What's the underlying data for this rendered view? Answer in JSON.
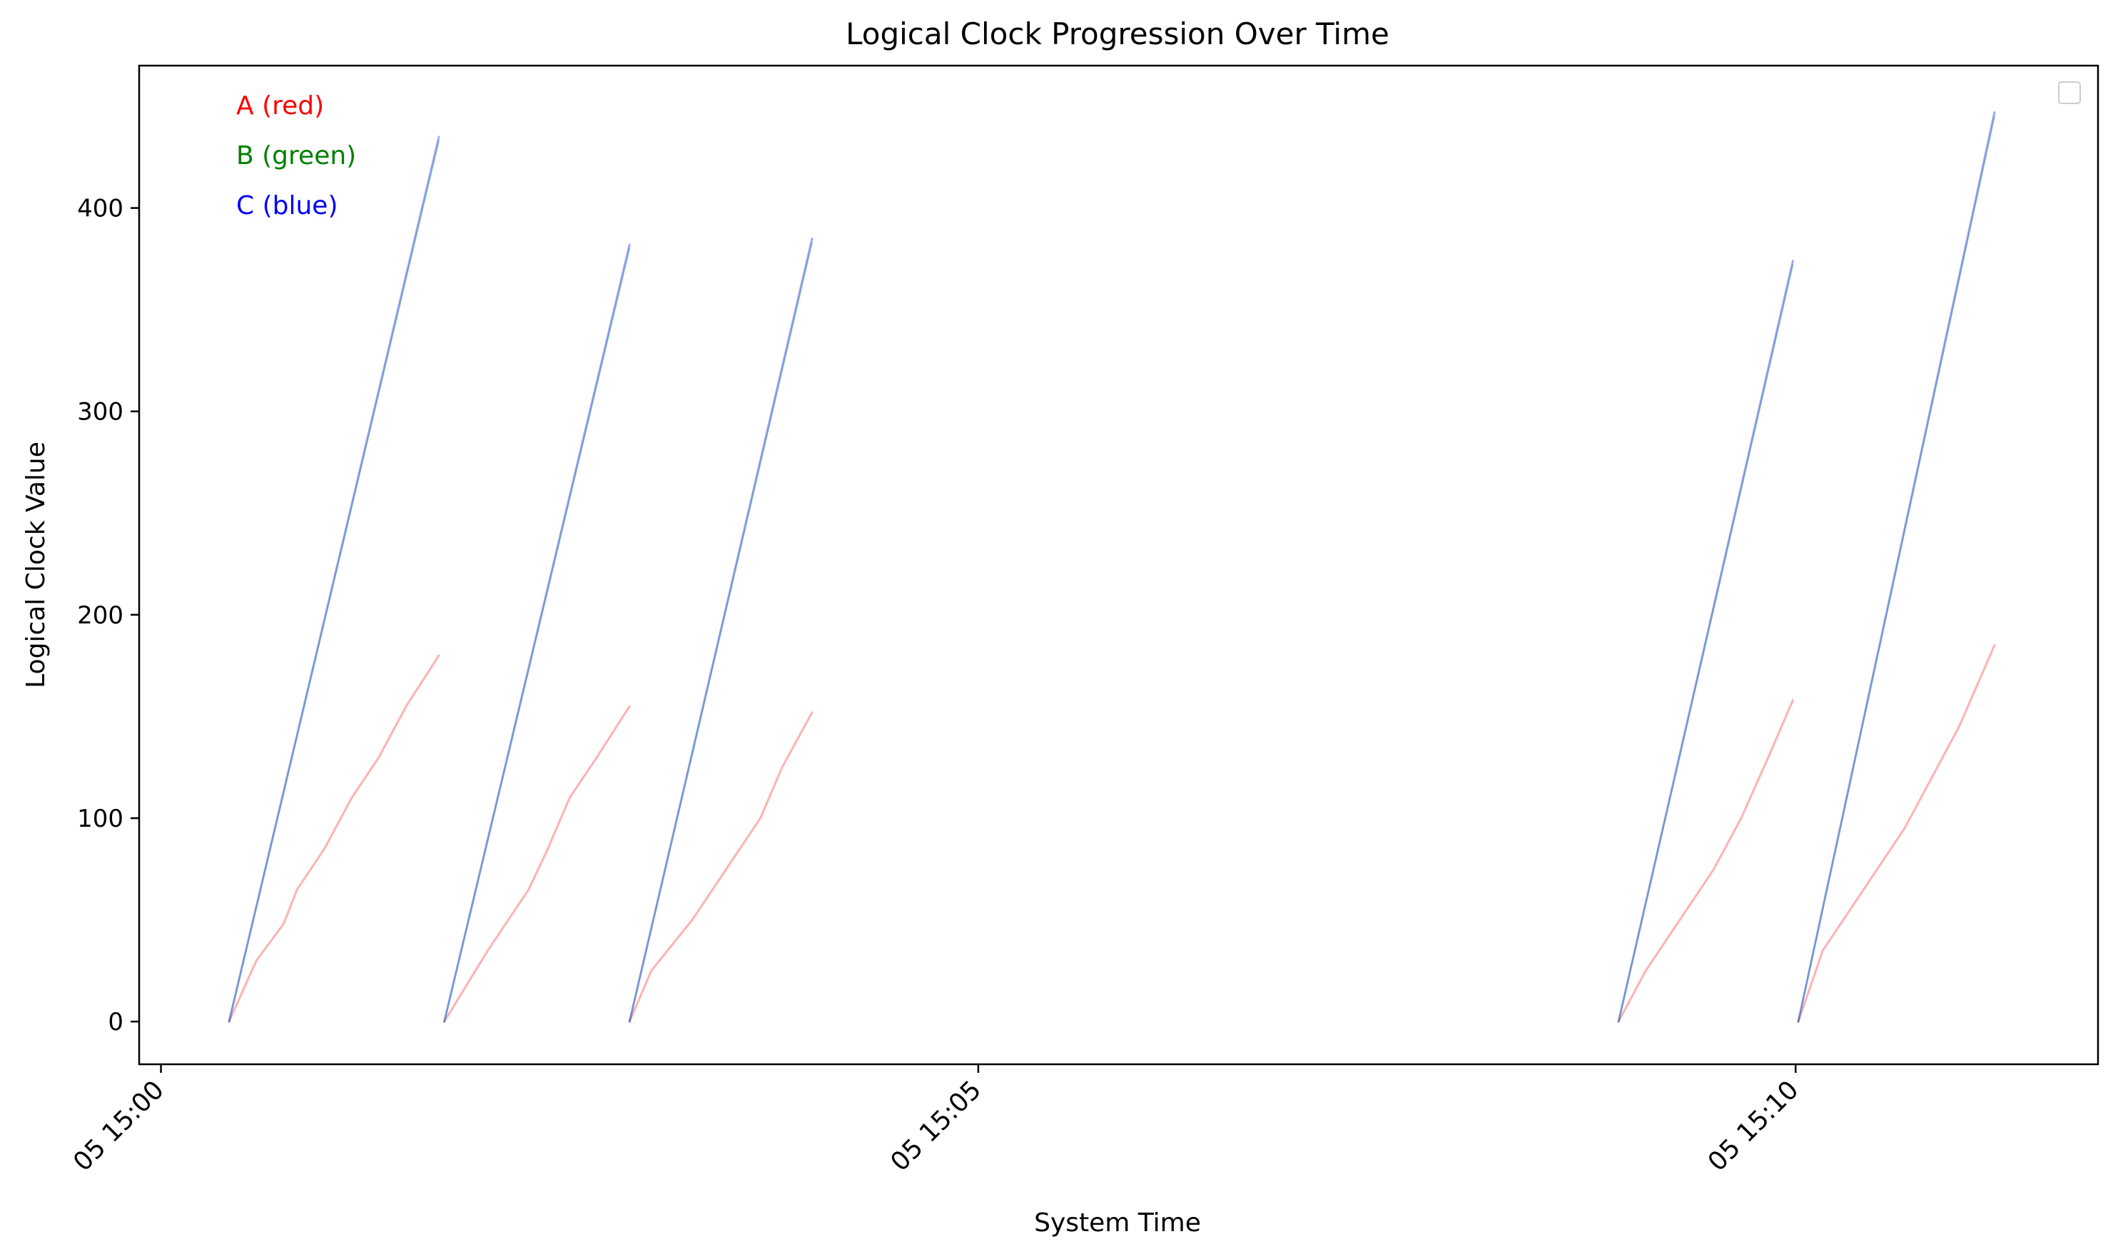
{
  "chart_data": {
    "type": "line",
    "title": "Logical Clock Progression Over Time",
    "xlabel": "System Time",
    "ylabel": "Logical Clock Value",
    "xlim": [
      "05 14:59:52",
      "05 15:11:51"
    ],
    "ylim": [
      -21,
      470
    ],
    "x_ticks": [
      {
        "t": "05 15:00:00",
        "label": "05 15:00"
      },
      {
        "t": "05 15:05:00",
        "label": "05 15:05"
      },
      {
        "t": "05 15:10:00",
        "label": "05 15:10"
      }
    ],
    "y_ticks": [
      0,
      100,
      200,
      300,
      400
    ],
    "grid": false,
    "legend_placement": "upper-right (empty)",
    "annotations": [
      {
        "text": "A (red)",
        "color": "#ff0000"
      },
      {
        "text": "B (green)",
        "color": "#008000"
      },
      {
        "text": "C (blue)",
        "color": "#0000ff"
      }
    ],
    "series": [
      {
        "color": "#ff0000",
        "runs": [
          [
            [
              "05 15:00:25",
              0
            ],
            [
              "05 15:00:35",
              30
            ],
            [
              "05 15:00:45",
              48
            ],
            [
              "05 15:00:50",
              65
            ],
            [
              "05 15:01:00",
              85
            ],
            [
              "05 15:01:10",
              110
            ],
            [
              "05 15:01:20",
              130
            ],
            [
              "05 15:01:30",
              155
            ],
            [
              "05 15:01:42",
              180
            ]
          ],
          [
            [
              "05 15:01:44",
              0
            ],
            [
              "05 15:02:00",
              35
            ],
            [
              "05 15:02:15",
              65
            ],
            [
              "05 15:02:22",
              85
            ],
            [
              "05 15:02:30",
              110
            ],
            [
              "05 15:02:40",
              130
            ],
            [
              "05 15:02:52",
              155
            ]
          ],
          [
            [
              "05 15:02:52",
              0
            ],
            [
              "05 15:03:00",
              25
            ],
            [
              "05 15:03:15",
              50
            ],
            [
              "05 15:03:30",
              80
            ],
            [
              "05 15:03:40",
              100
            ],
            [
              "05 15:03:48",
              125
            ],
            [
              "05 15:03:59",
              152
            ]
          ],
          [
            [
              "05 15:08:55",
              0
            ],
            [
              "05 15:09:05",
              25
            ],
            [
              "05 15:09:20",
              55
            ],
            [
              "05 15:09:30",
              75
            ],
            [
              "05 15:09:40",
              100
            ],
            [
              "05 15:09:50",
              130
            ],
            [
              "05 15:09:59",
              158
            ]
          ],
          [
            [
              "05 15:10:01",
              0
            ],
            [
              "05 15:10:10",
              35
            ],
            [
              "05 15:10:25",
              65
            ],
            [
              "05 15:10:40",
              95
            ],
            [
              "05 15:10:50",
              120
            ],
            [
              "05 15:11:00",
              145
            ],
            [
              "05 15:11:13",
              185
            ]
          ]
        ]
      },
      {
        "color": "#00c000",
        "runs": [
          [
            [
              "05 15:00:25",
              0
            ],
            [
              "05 15:01:42",
              433
            ]
          ],
          [
            [
              "05 15:01:44",
              0
            ],
            [
              "05 15:02:52",
              380
            ]
          ],
          [
            [
              "05 15:02:52",
              0
            ],
            [
              "05 15:03:59",
              383
            ]
          ],
          [
            [
              "05 15:08:55",
              0
            ],
            [
              "05 15:09:59",
              372
            ]
          ],
          [
            [
              "05 15:10:01",
              0
            ],
            [
              "05 15:11:13",
              445
            ]
          ]
        ]
      },
      {
        "color": "#0000ff",
        "runs": [
          [
            [
              "05 15:00:25",
              0
            ],
            [
              "05 15:01:42",
              435
            ]
          ],
          [
            [
              "05 15:01:44",
              0
            ],
            [
              "05 15:02:52",
              382
            ]
          ],
          [
            [
              "05 15:02:52",
              0
            ],
            [
              "05 15:03:59",
              385
            ]
          ],
          [
            [
              "05 15:08:55",
              0
            ],
            [
              "05 15:09:59",
              374
            ]
          ],
          [
            [
              "05 15:10:01",
              0
            ],
            [
              "05 15:11:13",
              447
            ]
          ]
        ]
      }
    ]
  }
}
